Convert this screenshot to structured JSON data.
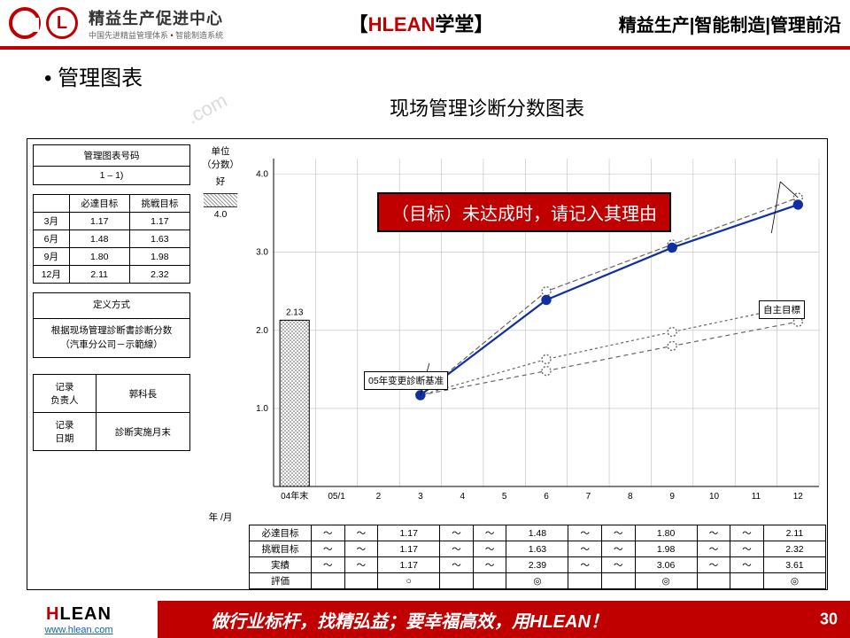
{
  "header": {
    "logo_title": "精益生产促进中心",
    "logo_sub_a": "中国先进精益管理体系",
    "logo_sub_b": "智能制造系统",
    "mid_bracket_l": "【",
    "mid_brand": "HLEAN",
    "mid_cn": "学堂",
    "mid_bracket_r": "】",
    "right": "精益生产|智能制造|管理前沿"
  },
  "bullet": "管理图表",
  "chart_title": "现场管理诊断分数图表",
  "watermark": ".com",
  "left": {
    "code_header": "管理图表号码",
    "code_value": "1 – 1)",
    "targets_headers": [
      "",
      "必達目标",
      "挑戦目标"
    ],
    "targets_rows": [
      [
        "3月",
        "1.17",
        "1.17"
      ],
      [
        "6月",
        "1.48",
        "1.63"
      ],
      [
        "9月",
        "1.80",
        "1.98"
      ],
      [
        "12月",
        "2.11",
        "2.32"
      ]
    ],
    "def_header": "定义方式",
    "def_body1": "根据现场管理診断書診断分数",
    "def_body2": "（汽車分公司－示範線）",
    "rec_row1_a": "记录",
    "rec_row1_b": "负责人",
    "rec_row1_val": "郭科長",
    "rec_row2_a": "记录",
    "rec_row2_b": "日期",
    "rec_row2_val": "診断実施月末"
  },
  "unit": {
    "l1": "单位",
    "l2": "（分数）",
    "good": "好",
    "top_tick": "4.0"
  },
  "callout_red": "（目标）未达成时，请记入其理由",
  "annot_change": "05年变更診断基准",
  "annot_self": "自主目標",
  "chart": {
    "type": "line",
    "y_ticks": [
      "1.0",
      "2.0",
      "3.0",
      "4.0"
    ],
    "ylim": [
      0,
      4.2
    ],
    "x_categories": [
      "04年末",
      "05/1",
      "2",
      "3",
      "4",
      "5",
      "6",
      "7",
      "8",
      "9",
      "10",
      "11",
      "12"
    ],
    "bar04_value": 2.13,
    "bar04_label": "2.13",
    "series": {
      "actual": {
        "color": "#1030a0",
        "marker_fill": "#1030a0",
        "width": 2.2,
        "dash": "",
        "points": {
          "3": 1.17,
          "6": 2.39,
          "9": 3.06,
          "12": 3.61
        }
      },
      "must": {
        "color": "#666",
        "marker_fill": "#fff",
        "width": 1.2,
        "dash": "5,4",
        "points": {
          "3": 1.17,
          "6": 1.48,
          "9": 1.8,
          "12": 2.11
        }
      },
      "challenge": {
        "color": "#666",
        "marker_fill": "#fff",
        "width": 1.2,
        "dash": "3,3",
        "points": {
          "3": 1.17,
          "6": 1.63,
          "9": 1.98,
          "12": 2.32
        }
      },
      "self": {
        "color": "#666",
        "marker_fill": "#fff",
        "width": 1.2,
        "dash": "6,3",
        "points": {
          "3": 1.17,
          "6": 2.5,
          "9": 3.1,
          "12": 3.7
        }
      }
    },
    "grid_color": "#bfbfbf",
    "axis_color": "#000",
    "background": "#ffffff"
  },
  "bottom": {
    "row_labels": [
      "必達目标",
      "挑戦目标",
      "実績",
      "評価"
    ],
    "cols": [
      "05/1",
      "2",
      "3",
      "4",
      "5",
      "6",
      "7",
      "8",
      "9",
      "10",
      "11",
      "12"
    ],
    "data": {
      "必達目标": [
        "～",
        "～",
        "1.17",
        "～",
        "～",
        "1.48",
        "～",
        "～",
        "1.80",
        "～",
        "～",
        "2.11"
      ],
      "挑戦目标": [
        "～",
        "～",
        "1.17",
        "～",
        "～",
        "1.63",
        "～",
        "～",
        "1.98",
        "～",
        "～",
        "2.32"
      ],
      "実績": [
        "～",
        "～",
        "1.17",
        "～",
        "～",
        "2.39",
        "～",
        "～",
        "3.06",
        "～",
        "～",
        "3.61"
      ],
      "評価": [
        "",
        "",
        "○",
        "",
        "",
        "◎",
        "",
        "",
        "◎",
        "",
        "",
        "◎"
      ]
    }
  },
  "axis_x_label": "年 /月",
  "footer": {
    "brand_h": "H",
    "brand_rest": "LEAN",
    "url": "www.hlean.com",
    "slogan_a": "做行业标杆，找精弘益；要幸福高效，用",
    "slogan_b": "HLEAN！",
    "page": "30"
  }
}
